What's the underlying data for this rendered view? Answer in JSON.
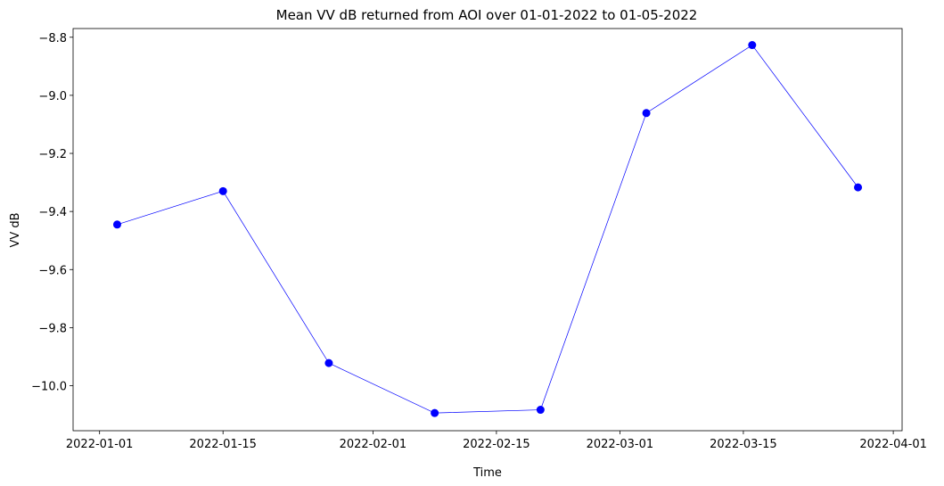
{
  "chart_data": {
    "type": "line",
    "title": "Mean VV dB returned from AOI over 01-01-2022 to 01-05-2022",
    "xlabel": "Time",
    "ylabel": "VV dB",
    "x_type": "date",
    "xlim": [
      "2021-12-29",
      "2022-04-02"
    ],
    "ylim": [
      -10.155,
      -8.77
    ],
    "grid": false,
    "line_color": "#0000ff",
    "marker_color": "#0000ff",
    "x_ticks": [
      {
        "value": "2022-01-01",
        "label": "2022-01-01"
      },
      {
        "value": "2022-01-15",
        "label": "2022-01-15"
      },
      {
        "value": "2022-02-01",
        "label": "2022-02-01"
      },
      {
        "value": "2022-02-15",
        "label": "2022-02-15"
      },
      {
        "value": "2022-03-01",
        "label": "2022-03-01"
      },
      {
        "value": "2022-03-15",
        "label": "2022-03-15"
      },
      {
        "value": "2022-04-01",
        "label": "2022-04-01"
      }
    ],
    "y_ticks": [
      {
        "value": -8.8,
        "label": "−8.8"
      },
      {
        "value": -9.0,
        "label": "−9.0"
      },
      {
        "value": -9.2,
        "label": "−9.2"
      },
      {
        "value": -9.4,
        "label": "−9.4"
      },
      {
        "value": -9.6,
        "label": "−9.6"
      },
      {
        "value": -9.8,
        "label": "−9.8"
      },
      {
        "value": -10.0,
        "label": "−10.0"
      }
    ],
    "series": [
      {
        "x": [
          "2022-01-03",
          "2022-01-15",
          "2022-01-27",
          "2022-02-08",
          "2022-02-20",
          "2022-03-04",
          "2022-03-16",
          "2022-03-28"
        ],
        "y": [
          -9.445,
          -9.33,
          -9.922,
          -10.094,
          -10.083,
          -9.061,
          -8.827,
          -9.317
        ]
      }
    ]
  }
}
